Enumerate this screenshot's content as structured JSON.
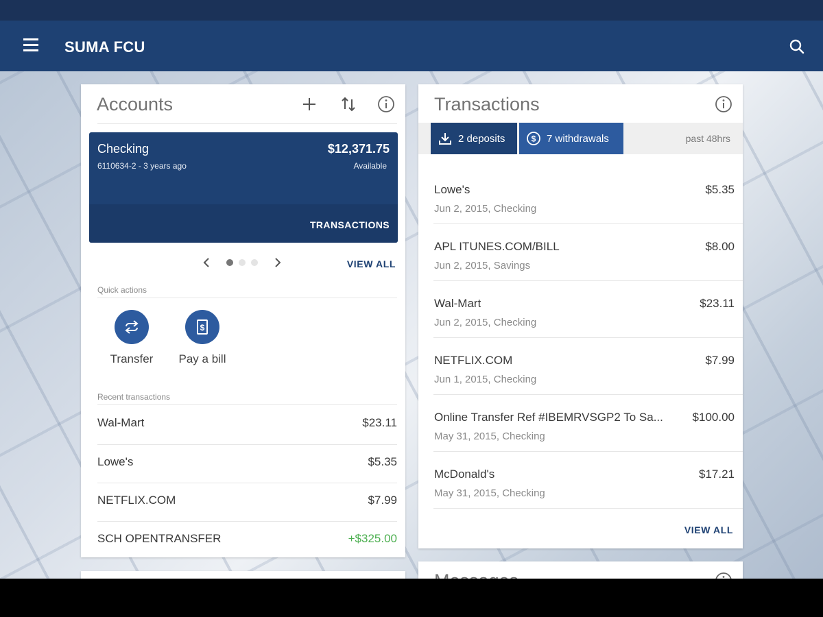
{
  "app": {
    "title": "SUMA FCU"
  },
  "accounts_card": {
    "title": "Accounts",
    "account": {
      "name": "Checking",
      "subtitle": "6110634-2 - 3 years ago",
      "balance": "$12,371.75",
      "balance_label": "Available",
      "transactions_label": "TRANSACTIONS"
    },
    "pager": {
      "current_page": 1,
      "total_pages": 3
    },
    "view_all": "VIEW ALL",
    "quick_actions_label": "Quick actions",
    "quick_actions": [
      {
        "label": "Transfer",
        "icon": "transfer-icon"
      },
      {
        "label": "Pay a bill",
        "icon": "bill-icon"
      }
    ],
    "recent_label": "Recent transactions",
    "recent": [
      {
        "name": "Wal-Mart",
        "amount": "$23.11",
        "positive": false
      },
      {
        "name": "Lowe's",
        "amount": "$5.35",
        "positive": false
      },
      {
        "name": "NETFLIX.COM",
        "amount": "$7.99",
        "positive": false
      },
      {
        "name": "SCH OPENTRANSFER",
        "amount": "+$325.00",
        "positive": true
      }
    ]
  },
  "transactions_card": {
    "title": "Transactions",
    "filters": {
      "deposits": "2 deposits",
      "withdrawals": "7 withdrawals",
      "period": "past 48hrs"
    },
    "items": [
      {
        "name": "Lowe's",
        "date": "Jun 2, 2015, Checking",
        "amount": "$5.35"
      },
      {
        "name": "APL ITUNES.COM/BILL",
        "date": "Jun 2, 2015, Savings",
        "amount": "$8.00"
      },
      {
        "name": "Wal-Mart",
        "date": "Jun 2, 2015, Checking",
        "amount": "$23.11"
      },
      {
        "name": "NETFLIX.COM",
        "date": "Jun 1, 2015, Checking",
        "amount": "$7.99"
      },
      {
        "name": "Online Transfer Ref #IBEMRVSGP2 To Sa...",
        "date": "May 31, 2015, Checking",
        "amount": "$100.00"
      },
      {
        "name": "McDonald's",
        "date": "May 31, 2015, Checking",
        "amount": "$17.21"
      }
    ],
    "view_all": "VIEW ALL"
  },
  "messages_card": {
    "title": "Messages"
  },
  "colors": {
    "primary": "#1e4173",
    "primary_dark": "#1b3258",
    "accent_chip": "#2d5b9f",
    "positive": "#4caf50"
  }
}
